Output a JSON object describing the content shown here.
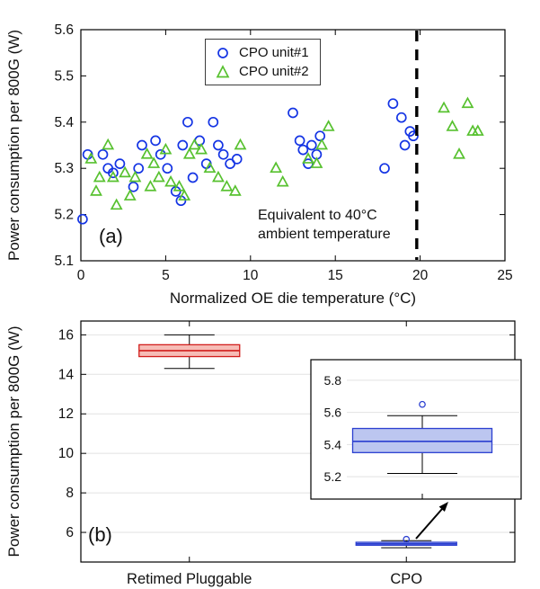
{
  "figure": {
    "panels": [
      {
        "label": "(a)"
      },
      {
        "label": "(b)"
      }
    ]
  },
  "chart_data": [
    {
      "type": "scatter",
      "panel": "(a)",
      "xlabel": "Normalized OE die temperature (°C)",
      "ylabel": "Power consumption per 800G (W)",
      "xlim": [
        0,
        25
      ],
      "ylim": [
        5.1,
        5.6
      ],
      "xticks": [
        0,
        5,
        10,
        15,
        20,
        25
      ],
      "xtick_labels": [
        "0",
        "5",
        "10",
        "15",
        "20",
        "25"
      ],
      "yticks": [
        5.1,
        5.2,
        5.3,
        5.4,
        5.5,
        5.6
      ],
      "ytick_labels": [
        "5.1",
        "5.2",
        "5.3",
        "5.4",
        "5.5",
        "5.6"
      ],
      "grid": false,
      "legend": {
        "position": "top-center",
        "entries": [
          "CPO unit#1",
          "CPO unit#2"
        ]
      },
      "vline": {
        "x": 19.8,
        "style": "dashed",
        "color": "#000000"
      },
      "annotation": {
        "lines": [
          "Equivalent to 40°C",
          "ambient temperature"
        ]
      },
      "series": [
        {
          "name": "CPO unit#1",
          "marker": "circle",
          "color": "#1434E4",
          "points": [
            [
              0.1,
              5.19
            ],
            [
              0.4,
              5.33
            ],
            [
              1.3,
              5.33
            ],
            [
              1.6,
              5.3
            ],
            [
              1.9,
              5.29
            ],
            [
              2.3,
              5.31
            ],
            [
              3.1,
              5.26
            ],
            [
              3.4,
              5.3
            ],
            [
              3.6,
              5.35
            ],
            [
              4.4,
              5.36
            ],
            [
              4.7,
              5.33
            ],
            [
              5.1,
              5.3
            ],
            [
              5.6,
              5.25
            ],
            [
              5.9,
              5.23
            ],
            [
              6.0,
              5.35
            ],
            [
              6.3,
              5.4
            ],
            [
              6.6,
              5.28
            ],
            [
              7.0,
              5.36
            ],
            [
              7.4,
              5.31
            ],
            [
              7.8,
              5.4
            ],
            [
              8.1,
              5.35
            ],
            [
              8.4,
              5.33
            ],
            [
              8.8,
              5.31
            ],
            [
              9.2,
              5.32
            ],
            [
              12.5,
              5.42
            ],
            [
              12.9,
              5.36
            ],
            [
              13.1,
              5.34
            ],
            [
              13.4,
              5.31
            ],
            [
              13.6,
              5.35
            ],
            [
              13.9,
              5.33
            ],
            [
              14.1,
              5.37
            ],
            [
              17.9,
              5.3
            ],
            [
              18.4,
              5.44
            ],
            [
              18.9,
              5.41
            ],
            [
              19.1,
              5.35
            ],
            [
              19.4,
              5.38
            ],
            [
              19.6,
              5.37
            ]
          ]
        },
        {
          "name": "CPO unit#2",
          "marker": "triangle",
          "color": "#57C12F",
          "points": [
            [
              0.6,
              5.32
            ],
            [
              0.9,
              5.25
            ],
            [
              1.1,
              5.28
            ],
            [
              1.6,
              5.35
            ],
            [
              1.9,
              5.28
            ],
            [
              2.1,
              5.22
            ],
            [
              2.6,
              5.29
            ],
            [
              2.9,
              5.24
            ],
            [
              3.2,
              5.28
            ],
            [
              3.9,
              5.33
            ],
            [
              4.1,
              5.26
            ],
            [
              4.3,
              5.31
            ],
            [
              4.6,
              5.28
            ],
            [
              5.0,
              5.34
            ],
            [
              5.3,
              5.27
            ],
            [
              5.8,
              5.26
            ],
            [
              6.1,
              5.24
            ],
            [
              6.4,
              5.33
            ],
            [
              6.7,
              5.35
            ],
            [
              7.1,
              5.34
            ],
            [
              7.6,
              5.3
            ],
            [
              8.1,
              5.28
            ],
            [
              8.6,
              5.26
            ],
            [
              9.1,
              5.25
            ],
            [
              9.4,
              5.35
            ],
            [
              11.5,
              5.3
            ],
            [
              11.9,
              5.27
            ],
            [
              13.4,
              5.32
            ],
            [
              13.9,
              5.31
            ],
            [
              14.2,
              5.35
            ],
            [
              14.6,
              5.39
            ],
            [
              21.4,
              5.43
            ],
            [
              21.9,
              5.39
            ],
            [
              22.3,
              5.33
            ],
            [
              22.8,
              5.44
            ],
            [
              23.1,
              5.38
            ],
            [
              23.4,
              5.38
            ]
          ]
        }
      ]
    },
    {
      "type": "box",
      "panel": "(b)",
      "ylabel": "Power consumption per 800G (W)",
      "ylim": [
        4.5,
        16.7
      ],
      "yticks": [
        6,
        8,
        10,
        12,
        14,
        16
      ],
      "ytick_labels": [
        "6",
        "8",
        "10",
        "12",
        "14",
        "16"
      ],
      "categories": [
        "Retimed Pluggable",
        "CPO"
      ],
      "grid": true,
      "boxes": [
        {
          "category": "Retimed Pluggable",
          "line_color": "#D21E1C",
          "fill": "#F6BCB6",
          "median_color": "#D21E1C",
          "whisker_low": 14.3,
          "q1": 14.9,
          "median": 15.2,
          "q3": 15.5,
          "whisker_high": 16.0,
          "outliers": []
        },
        {
          "category": "CPO",
          "line_color": "#2B3FD0",
          "fill": "#BCC6F0",
          "median_color": "#2B3FD0",
          "whisker_low": 5.22,
          "q1": 5.35,
          "median": 5.42,
          "q3": 5.5,
          "whisker_high": 5.58,
          "outliers": [
            5.65
          ]
        }
      ],
      "inset": {
        "ylim": [
          5.1,
          5.9
        ],
        "yticks": [
          5.2,
          5.4,
          5.6,
          5.8
        ],
        "ytick_labels": [
          "5.2",
          "5.4",
          "5.6",
          "5.8"
        ],
        "grid": true,
        "box_ref": 1
      }
    }
  ]
}
